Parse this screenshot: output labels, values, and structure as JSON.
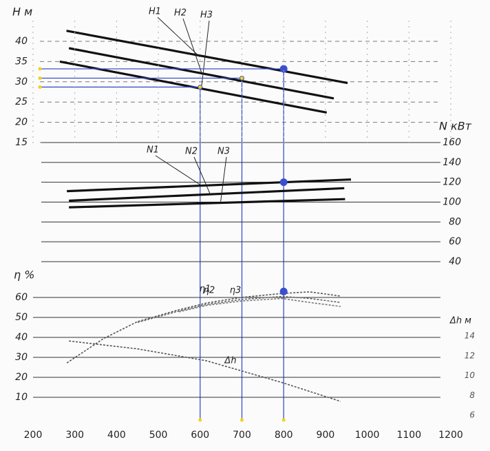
{
  "chart_data": [
    {
      "type": "line",
      "ylabel": "H м",
      "xlim": [
        200,
        1200
      ],
      "ylim": [
        15,
        40
      ],
      "yticks": [
        15,
        20,
        25,
        30,
        35,
        40
      ],
      "grid": true,
      "series": [
        {
          "name": "H1",
          "color": "#111111",
          "x": [
            280,
            953
          ],
          "values": [
            42.6,
            29.7
          ]
        },
        {
          "name": "H2",
          "color": "#111111",
          "x": [
            286,
            920
          ],
          "values": [
            38.3,
            25.9
          ]
        },
        {
          "name": "H3",
          "color": "#111111",
          "x": [
            264,
            903
          ],
          "values": [
            35.0,
            22.4
          ]
        }
      ],
      "guide_points": {
        "x": [
          600,
          700,
          800
        ],
        "y": [
          28.7,
          30.9,
          33.2
        ]
      }
    },
    {
      "type": "line",
      "ylabel": "N кВт",
      "xlim": [
        200,
        1200
      ],
      "ylim": [
        40,
        160
      ],
      "yticks": [
        40,
        60,
        80,
        100,
        120,
        140,
        160
      ],
      "grid": true,
      "series": [
        {
          "name": "N1",
          "color": "#111111",
          "x": [
            281,
            961
          ],
          "values": [
            111,
            122.8
          ]
        },
        {
          "name": "N2",
          "color": "#111111",
          "x": [
            286,
            945
          ],
          "values": [
            101.4,
            114
          ]
        },
        {
          "name": "N3",
          "color": "#111111",
          "x": [
            286,
            947
          ],
          "values": [
            94.7,
            103
          ]
        }
      ],
      "guide_points": {
        "x": [
          800
        ],
        "y": [
          120
        ]
      }
    },
    {
      "type": "line",
      "ylabel": "η %",
      "y2label": "Δh м",
      "xlim": [
        200,
        1200
      ],
      "xticks": [
        200,
        300,
        400,
        500,
        600,
        700,
        800,
        900,
        1000,
        1100,
        1200
      ],
      "ylim": [
        10,
        60
      ],
      "yticks": [
        10,
        20,
        30,
        40,
        50,
        60
      ],
      "y2lim": [
        6,
        14
      ],
      "y2ticks": [
        6,
        8,
        10,
        12,
        14
      ],
      "grid": true,
      "series": [
        {
          "name": "η1",
          "color": "#555555",
          "x": [
            281,
            368,
            450,
            549,
            615,
            698,
            796,
            862,
            936
          ],
          "values": [
            27.2,
            39.3,
            47.9,
            53.8,
            57.2,
            60,
            62,
            62.8,
            60.7
          ]
        },
        {
          "name": "η2",
          "color": "#666666",
          "x": [
            450,
            549,
            615,
            698,
            796,
            862,
            936
          ],
          "values": [
            47.5,
            53.2,
            56.5,
            59,
            60.5,
            59.5,
            57.5
          ]
        },
        {
          "name": "η3",
          "color": "#777777",
          "x": [
            549,
            615,
            698,
            796,
            862,
            936
          ],
          "values": [
            52.8,
            56,
            58.2,
            59.5,
            57.5,
            55.5
          ]
        },
        {
          "name": "Δh",
          "color": "#555555",
          "axis": "y2",
          "x": [
            286,
            450,
            615,
            796,
            936
          ],
          "values": [
            13.5,
            12.7,
            11.5,
            9.3,
            7.4
          ]
        }
      ],
      "guide_points": {
        "x": [
          800
        ],
        "y": [
          63
        ]
      }
    }
  ]
}
